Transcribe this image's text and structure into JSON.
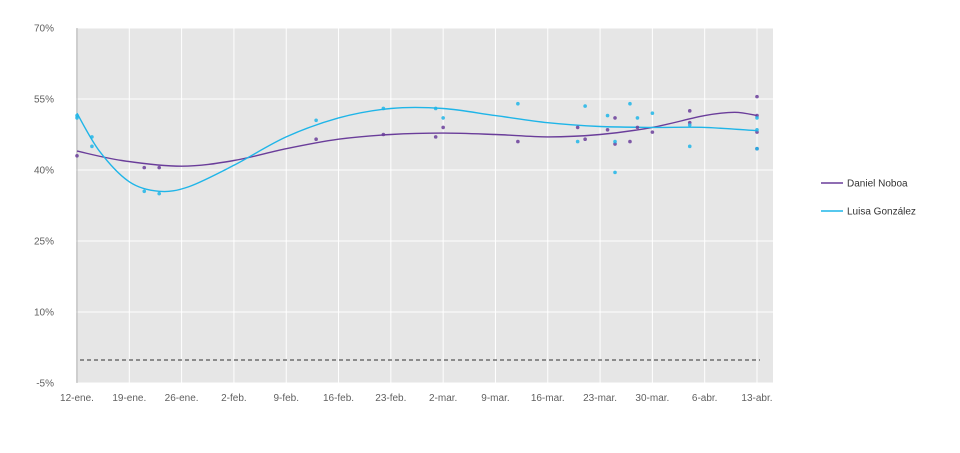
{
  "chart_data": {
    "type": "scatter",
    "title": "",
    "xlabel": "",
    "ylabel": "",
    "x_ticks": [
      "12-ene.",
      "19-ene.",
      "26-ene.",
      "2-feb.",
      "9-feb.",
      "16-feb.",
      "23-feb.",
      "2-mar.",
      "9-mar.",
      "16-mar.",
      "23-mar.",
      "30-mar.",
      "6-abr.",
      "13-abr."
    ],
    "y_ticks": [
      "-5%",
      "10%",
      "25%",
      "40%",
      "55%",
      "70%"
    ],
    "y_tick_values": [
      -5,
      10,
      25,
      40,
      55,
      70
    ],
    "ylim": [
      -5,
      70
    ],
    "xlim_days": [
      0,
      91
    ],
    "grid": true,
    "legend_position": "right",
    "reference_line": {
      "style": "dashed",
      "value": 0
    },
    "series": [
      {
        "name": "Daniel Noboa",
        "color": "#6a3d9a",
        "points": [
          {
            "x": "2025-01-12",
            "y": 43.0
          },
          {
            "x": "2025-01-21",
            "y": 40.5
          },
          {
            "x": "2025-01-23",
            "y": 40.5
          },
          {
            "x": "2025-02-13",
            "y": 46.5
          },
          {
            "x": "2025-02-22",
            "y": 47.5
          },
          {
            "x": "2025-03-01",
            "y": 47.0
          },
          {
            "x": "2025-03-02",
            "y": 49.0
          },
          {
            "x": "2025-03-12",
            "y": 46.0
          },
          {
            "x": "2025-03-20",
            "y": 49.0
          },
          {
            "x": "2025-03-21",
            "y": 46.5
          },
          {
            "x": "2025-03-24",
            "y": 48.5
          },
          {
            "x": "2025-03-25",
            "y": 51.0
          },
          {
            "x": "2025-03-25",
            "y": 45.5
          },
          {
            "x": "2025-03-27",
            "y": 46.0
          },
          {
            "x": "2025-03-28",
            "y": 49.0
          },
          {
            "x": "2025-03-30",
            "y": 48.0
          },
          {
            "x": "2025-04-04",
            "y": 52.5
          },
          {
            "x": "2025-04-04",
            "y": 50.0
          },
          {
            "x": "2025-04-13",
            "y": 55.5
          },
          {
            "x": "2025-04-13",
            "y": 51.5
          },
          {
            "x": "2025-04-13",
            "y": 48.0
          },
          {
            "x": "2025-04-13",
            "y": 44.5
          }
        ],
        "trend": [
          {
            "x": "2025-01-12",
            "y": 44.0
          },
          {
            "x": "2025-01-18",
            "y": 42.0
          },
          {
            "x": "2025-01-26",
            "y": 40.8
          },
          {
            "x": "2025-02-02",
            "y": 42.0
          },
          {
            "x": "2025-02-09",
            "y": 44.5
          },
          {
            "x": "2025-02-16",
            "y": 46.5
          },
          {
            "x": "2025-02-23",
            "y": 47.5
          },
          {
            "x": "2025-03-02",
            "y": 47.8
          },
          {
            "x": "2025-03-09",
            "y": 47.5
          },
          {
            "x": "2025-03-16",
            "y": 47.0
          },
          {
            "x": "2025-03-23",
            "y": 47.5
          },
          {
            "x": "2025-03-30",
            "y": 49.0
          },
          {
            "x": "2025-04-06",
            "y": 51.5
          },
          {
            "x": "2025-04-10",
            "y": 52.2
          },
          {
            "x": "2025-04-13",
            "y": 51.5
          }
        ]
      },
      {
        "name": "Luisa González",
        "color": "#1fb5e8",
        "points": [
          {
            "x": "2025-01-12",
            "y": 51.5
          },
          {
            "x": "2025-01-12",
            "y": 51.0
          },
          {
            "x": "2025-01-14",
            "y": 47.0
          },
          {
            "x": "2025-01-14",
            "y": 45.0
          },
          {
            "x": "2025-01-21",
            "y": 35.5
          },
          {
            "x": "2025-01-23",
            "y": 35.0
          },
          {
            "x": "2025-02-13",
            "y": 50.5
          },
          {
            "x": "2025-02-22",
            "y": 53.0
          },
          {
            "x": "2025-03-01",
            "y": 53.0
          },
          {
            "x": "2025-03-02",
            "y": 51.0
          },
          {
            "x": "2025-03-12",
            "y": 54.0
          },
          {
            "x": "2025-03-20",
            "y": 46.0
          },
          {
            "x": "2025-03-21",
            "y": 53.5
          },
          {
            "x": "2025-03-24",
            "y": 51.5
          },
          {
            "x": "2025-03-25",
            "y": 46.0
          },
          {
            "x": "2025-03-25",
            "y": 39.5
          },
          {
            "x": "2025-03-27",
            "y": 54.0
          },
          {
            "x": "2025-03-28",
            "y": 51.0
          },
          {
            "x": "2025-03-30",
            "y": 52.0
          },
          {
            "x": "2025-04-04",
            "y": 49.5
          },
          {
            "x": "2025-04-04",
            "y": 45.0
          },
          {
            "x": "2025-04-13",
            "y": 51.0
          },
          {
            "x": "2025-04-13",
            "y": 48.5
          },
          {
            "x": "2025-04-13",
            "y": 44.5
          }
        ],
        "trend": [
          {
            "x": "2025-01-12",
            "y": 52.0
          },
          {
            "x": "2025-01-15",
            "y": 44.0
          },
          {
            "x": "2025-01-19",
            "y": 37.5
          },
          {
            "x": "2025-01-23",
            "y": 35.5
          },
          {
            "x": "2025-01-27",
            "y": 36.5
          },
          {
            "x": "2025-02-02",
            "y": 41.0
          },
          {
            "x": "2025-02-09",
            "y": 47.0
          },
          {
            "x": "2025-02-16",
            "y": 51.0
          },
          {
            "x": "2025-02-23",
            "y": 53.0
          },
          {
            "x": "2025-03-02",
            "y": 53.0
          },
          {
            "x": "2025-03-09",
            "y": 51.5
          },
          {
            "x": "2025-03-16",
            "y": 50.0
          },
          {
            "x": "2025-03-23",
            "y": 49.2
          },
          {
            "x": "2025-03-30",
            "y": 49.0
          },
          {
            "x": "2025-04-06",
            "y": 49.0
          },
          {
            "x": "2025-04-13",
            "y": 48.3
          }
        ]
      }
    ]
  }
}
